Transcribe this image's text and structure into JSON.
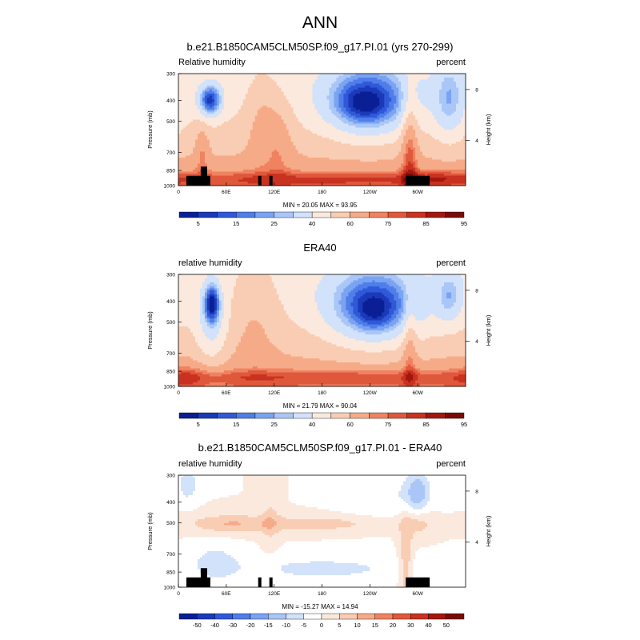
{
  "page_title": "ANN",
  "palette_abs": [
    "#0a1f96",
    "#1a3ab8",
    "#2f59d9",
    "#4f7ee8",
    "#7aa3f2",
    "#a9c6f7",
    "#d1e2fa",
    "#fbe9de",
    "#f9cdb3",
    "#f6ab88",
    "#ef8260",
    "#e0583c",
    "#c93220",
    "#a3170f",
    "#7a0a07"
  ],
  "palette_diff": [
    "#0a1f96",
    "#1a3ab8",
    "#2f59d9",
    "#4f7ee8",
    "#7aa3f2",
    "#a9c6f7",
    "#d1e2fa",
    "#ffffff",
    "#fbe9de",
    "#f9cdb3",
    "#f6ab88",
    "#ef8260",
    "#e0583c",
    "#c93220",
    "#a3170f",
    "#7a0a07"
  ],
  "panels": [
    {
      "title": "b.e21.B1850CAM5CLM50SP.f09_g17.PI.01 (yrs 270-299)",
      "left_label": "Relative humidity",
      "right_label": "percent",
      "stats": "MIN =  20.05  MAX =  93.95",
      "colorbar_labels": [
        "5",
        "15",
        "25",
        "40",
        "60",
        "75",
        "85",
        "95"
      ]
    },
    {
      "title": "ERA40",
      "left_label": "relative humidity",
      "right_label": "percent",
      "stats": "MIN =  21.79  MAX =  90.04",
      "colorbar_labels": [
        "5",
        "15",
        "25",
        "40",
        "60",
        "75",
        "85",
        "95"
      ]
    },
    {
      "title": "b.e21.B1850CAM5CLM50SP.f09_g17.PI.01 - ERA40",
      "left_label": "relative humidity",
      "right_label": "percent",
      "stats": "MIN = -15.27  MAX =  14.94",
      "colorbar_labels": [
        "-50",
        "-40",
        "-30",
        "-20",
        "-15",
        "-10",
        "-5",
        "0",
        "5",
        "10",
        "15",
        "20",
        "30",
        "40",
        "50"
      ]
    }
  ],
  "chart_data": [
    {
      "type": "heatmap",
      "title": "b.e21.B1850CAM5CLM50SP.f09_g17.PI.01 (yrs 270-299)",
      "variable": "Relative humidity",
      "units": "percent",
      "xlabel": "",
      "ylabel": "Pressure (mb)",
      "ylabel_right": "Height (km)",
      "x_ticks": [
        "0",
        "60E",
        "120E",
        "180",
        "120W",
        "60W"
      ],
      "x_tick_values": [
        0,
        60,
        120,
        180,
        240,
        300
      ],
      "xlim": [
        0,
        360
      ],
      "y_ticks": [
        "300",
        "400",
        "500",
        "700",
        "850",
        "1000"
      ],
      "y_tick_values": [
        300,
        400,
        500,
        700,
        850,
        1000
      ],
      "ylim": [
        1000,
        300
      ],
      "yscale": "log",
      "right_ticks": [
        "4",
        "8"
      ],
      "right_tick_pressures": [
        616,
        356
      ],
      "levels": [
        5,
        10,
        15,
        20,
        25,
        30,
        40,
        50,
        60,
        70,
        75,
        80,
        85,
        90,
        95
      ],
      "min": 20.05,
      "max": 93.95,
      "terrain": [
        [
          10,
          40,
          900
        ],
        [
          28,
          36,
          815
        ],
        [
          100,
          104,
          900
        ],
        [
          114,
          118,
          900
        ],
        [
          285,
          315,
          900
        ]
      ],
      "features": [
        {
          "lon": 40,
          "p": 400,
          "dlon": 10,
          "dlnp": 0.12,
          "amp": -40
        },
        {
          "lon": 30,
          "p": 680,
          "dlon": 6,
          "dlnp": 0.2,
          "amp": 12
        },
        {
          "lon": 238,
          "p": 400,
          "dlon": 38,
          "dlnp": 0.26,
          "amp": -40
        },
        {
          "lon": 230,
          "p": 420,
          "dlon": 20,
          "dlnp": 0.12,
          "amp": -10
        },
        {
          "lon": 340,
          "p": 400,
          "dlon": 14,
          "dlnp": 0.3,
          "amp": -22
        },
        {
          "lon": 105,
          "p": 500,
          "dlon": 14,
          "dlnp": 0.35,
          "amp": 12
        },
        {
          "lon": 128,
          "p": 600,
          "dlon": 12,
          "dlnp": 0.3,
          "amp": 10
        },
        {
          "lon": 290,
          "p": 650,
          "dlon": 7,
          "dlnp": 0.45,
          "amp": 20
        },
        {
          "lon": 180,
          "p": 930,
          "dlon": 200,
          "dlnp": 0.06,
          "amp": 12
        },
        {
          "lon": 330,
          "p": 920,
          "dlon": 30,
          "dlnp": 0.06,
          "amp": 8
        }
      ]
    },
    {
      "type": "heatmap",
      "title": "ERA40",
      "variable": "relative humidity",
      "units": "percent",
      "xlabel": "",
      "ylabel": "Pressure (mb)",
      "ylabel_right": "Height (km)",
      "x_ticks": [
        "0",
        "60E",
        "120E",
        "180",
        "120W",
        "60W"
      ],
      "x_tick_values": [
        0,
        60,
        120,
        180,
        240,
        300
      ],
      "xlim": [
        0,
        360
      ],
      "y_ticks": [
        "300",
        "400",
        "500",
        "700",
        "850",
        "1000"
      ],
      "y_tick_values": [
        300,
        400,
        500,
        700,
        850,
        1000
      ],
      "ylim": [
        1000,
        300
      ],
      "yscale": "log",
      "right_ticks": [
        "4",
        "8"
      ],
      "right_tick_pressures": [
        616,
        356
      ],
      "levels": [
        5,
        10,
        15,
        20,
        25,
        30,
        40,
        50,
        60,
        70,
        75,
        80,
        85,
        90,
        95
      ],
      "min": 21.79,
      "max": 90.04,
      "terrain": [],
      "features": [
        {
          "lon": 42,
          "p": 410,
          "dlon": 7,
          "dlnp": 0.15,
          "amp": -40
        },
        {
          "lon": 42,
          "p": 550,
          "dlon": 14,
          "dlnp": 0.3,
          "amp": -15
        },
        {
          "lon": 245,
          "p": 420,
          "dlon": 40,
          "dlnp": 0.28,
          "amp": -40
        },
        {
          "lon": 245,
          "p": 450,
          "dlon": 15,
          "dlnp": 0.12,
          "amp": -10
        },
        {
          "lon": 340,
          "p": 380,
          "dlon": 12,
          "dlnp": 0.2,
          "amp": -20
        },
        {
          "lon": 95,
          "p": 450,
          "dlon": 22,
          "dlnp": 0.4,
          "amp": 10
        },
        {
          "lon": 290,
          "p": 650,
          "dlon": 6,
          "dlnp": 0.4,
          "amp": 14
        },
        {
          "lon": 180,
          "p": 900,
          "dlon": 200,
          "dlnp": 0.06,
          "amp": 12
        },
        {
          "lon": 10,
          "p": 900,
          "dlon": 20,
          "dlnp": 0.1,
          "amp": 8
        }
      ]
    },
    {
      "type": "heatmap",
      "title": "b.e21.B1850CAM5CLM50SP.f09_g17.PI.01 - ERA40",
      "variable": "relative humidity",
      "units": "percent",
      "xlabel": "",
      "ylabel": "Pressure (mb)",
      "ylabel_right": "Height (km)",
      "x_ticks": [
        "0",
        "60E",
        "120E",
        "180",
        "120W",
        "60W"
      ],
      "x_tick_values": [
        0,
        60,
        120,
        180,
        240,
        300
      ],
      "xlim": [
        0,
        360
      ],
      "y_ticks": [
        "300",
        "400",
        "500",
        "700",
        "850",
        "1000"
      ],
      "y_tick_values": [
        300,
        400,
        500,
        700,
        850,
        1000
      ],
      "ylim": [
        1000,
        300
      ],
      "yscale": "log",
      "right_ticks": [
        "4",
        "8"
      ],
      "right_tick_pressures": [
        616,
        356
      ],
      "levels": [
        -50,
        -40,
        -30,
        -20,
        -15,
        -10,
        -5,
        0,
        5,
        10,
        15,
        20,
        30,
        40,
        50
      ],
      "min": -15.27,
      "max": 14.94,
      "terrain": [
        [
          10,
          40,
          900
        ],
        [
          28,
          36,
          815
        ],
        [
          100,
          104,
          900
        ],
        [
          114,
          118,
          900
        ],
        [
          285,
          315,
          900
        ]
      ],
      "features": [
        {
          "lon": 60,
          "p": 505,
          "dlon": 35,
          "dlnp": 0.07,
          "amp": 8
        },
        {
          "lon": 180,
          "p": 505,
          "dlon": 80,
          "dlnp": 0.07,
          "amp": 7
        },
        {
          "lon": 300,
          "p": 500,
          "dlon": 15,
          "dlnp": 0.12,
          "amp": 6
        },
        {
          "lon": 115,
          "p": 470,
          "dlon": 8,
          "dlnp": 0.3,
          "amp": 5
        },
        {
          "lon": 12,
          "p": 330,
          "dlon": 8,
          "dlnp": 0.12,
          "amp": -9
        },
        {
          "lon": 300,
          "p": 360,
          "dlon": 10,
          "dlnp": 0.15,
          "amp": -12
        },
        {
          "lon": 180,
          "p": 820,
          "dlon": 100,
          "dlnp": 0.12,
          "amp": -6
        },
        {
          "lon": 45,
          "p": 760,
          "dlon": 20,
          "dlnp": 0.15,
          "amp": -6
        },
        {
          "lon": 285,
          "p": 760,
          "dlon": 6,
          "dlnp": 0.3,
          "amp": 10
        },
        {
          "lon": 260,
          "p": 380,
          "dlon": 40,
          "dlnp": 0.2,
          "amp": -5
        }
      ]
    }
  ]
}
